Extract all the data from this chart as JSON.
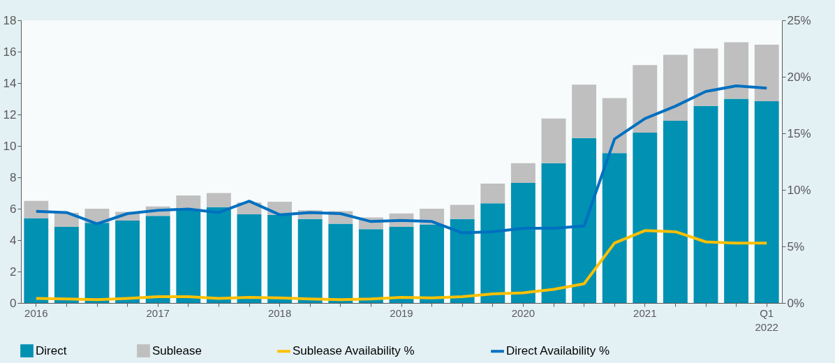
{
  "chart_data": {
    "type": "bar",
    "stacked": true,
    "categories": [
      "2016",
      null,
      null,
      null,
      "2017",
      null,
      null,
      null,
      "2018",
      null,
      null,
      null,
      "2019",
      null,
      null,
      null,
      "2020",
      null,
      null,
      null,
      "2021",
      null,
      null,
      null,
      "Q1\n2022"
    ],
    "series": [
      {
        "name": "Direct",
        "color": "#0091b3",
        "values": [
          5.4,
          4.85,
          5.1,
          5.25,
          5.55,
          5.95,
          6.1,
          5.65,
          5.6,
          5.35,
          5.05,
          4.7,
          4.85,
          5.0,
          5.35,
          6.35,
          7.65,
          8.9,
          10.5,
          9.55,
          10.85,
          11.6,
          12.55,
          13.0,
          12.85
        ]
      },
      {
        "name": "Sublease",
        "color": "#bfbfbf",
        "values": [
          1.1,
          0.9,
          0.9,
          0.55,
          0.6,
          0.9,
          0.9,
          0.75,
          0.85,
          0.55,
          0.8,
          0.75,
          0.85,
          1.0,
          0.9,
          1.25,
          1.25,
          2.85,
          3.4,
          3.5,
          4.3,
          4.2,
          3.65,
          3.6,
          3.6
        ]
      },
      {
        "name": "Sublease Availability %",
        "type": "line",
        "axis": "y2",
        "color": "#ffc000",
        "values": [
          0.4,
          0.35,
          0.3,
          0.4,
          0.55,
          0.55,
          0.4,
          0.5,
          0.45,
          0.35,
          0.3,
          0.35,
          0.5,
          0.45,
          0.55,
          0.8,
          0.9,
          1.2,
          1.7,
          5.3,
          6.4,
          6.3,
          5.4,
          5.3,
          5.3
        ]
      },
      {
        "name": "Direct Availability %",
        "type": "line",
        "axis": "y2",
        "color": "#0070c0",
        "values": [
          8.1,
          8.0,
          7.0,
          7.9,
          8.2,
          8.3,
          8.0,
          9.0,
          7.8,
          8.0,
          7.9,
          7.2,
          7.3,
          7.2,
          6.2,
          6.3,
          6.6,
          6.6,
          6.8,
          14.5,
          16.3,
          17.4,
          18.7,
          19.2,
          19.0
        ]
      }
    ],
    "ylim": [
      0,
      18
    ],
    "yticks": [
      0,
      2,
      4,
      6,
      8,
      10,
      12,
      14,
      16,
      18
    ],
    "y2lim": [
      0,
      25
    ],
    "y2ticks": [
      {
        "value": 0,
        "label": "0%"
      },
      {
        "value": 5,
        "label": "5%"
      },
      {
        "value": 10,
        "label": "10%"
      },
      {
        "value": 15,
        "label": "15%"
      },
      {
        "value": 20,
        "label": "20%"
      },
      {
        "value": 25,
        "label": "25%"
      }
    ],
    "legend": "bottom",
    "grid": false
  }
}
